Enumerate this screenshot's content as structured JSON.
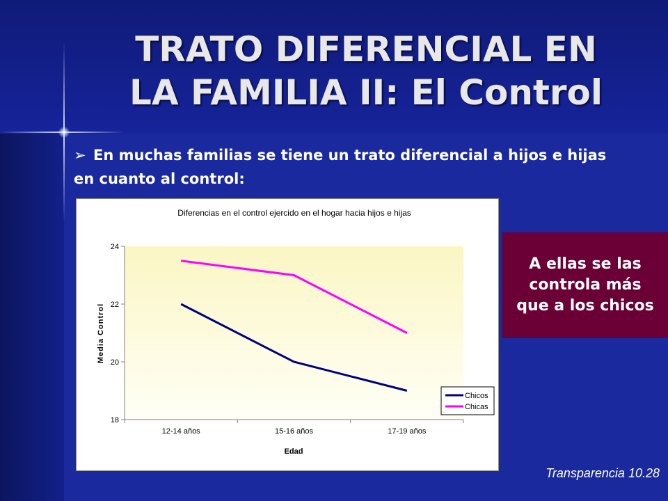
{
  "slide": {
    "title_line1": "TRATO DIFERENCIAL EN",
    "title_line2": "LA FAMILIA II: El Control",
    "bullet_text": "En muchas familias se tiene un trato diferencial a hijos e hijas en cuanto al control:",
    "callout_text": "A ellas se las controla más que a los chicos",
    "footer": "Transparencia 10.28"
  },
  "chart_data": {
    "type": "line",
    "title": "Diferencias en el control ejercido en el hogar hacia hijos e hijas",
    "xlabel": "Edad",
    "ylabel": "Media Control",
    "categories": [
      "12-14 años",
      "15-16 años",
      "17-19 años"
    ],
    "ylim": [
      18,
      24
    ],
    "yticks": [
      18,
      20,
      22,
      24
    ],
    "grid": false,
    "legend": "bottom-right",
    "series": [
      {
        "name": "Chicos",
        "values": [
          22,
          20,
          19
        ],
        "color": "#000080"
      },
      {
        "name": "Chicas",
        "values": [
          23.5,
          23,
          21
        ],
        "color": "#ff00ff"
      }
    ]
  }
}
